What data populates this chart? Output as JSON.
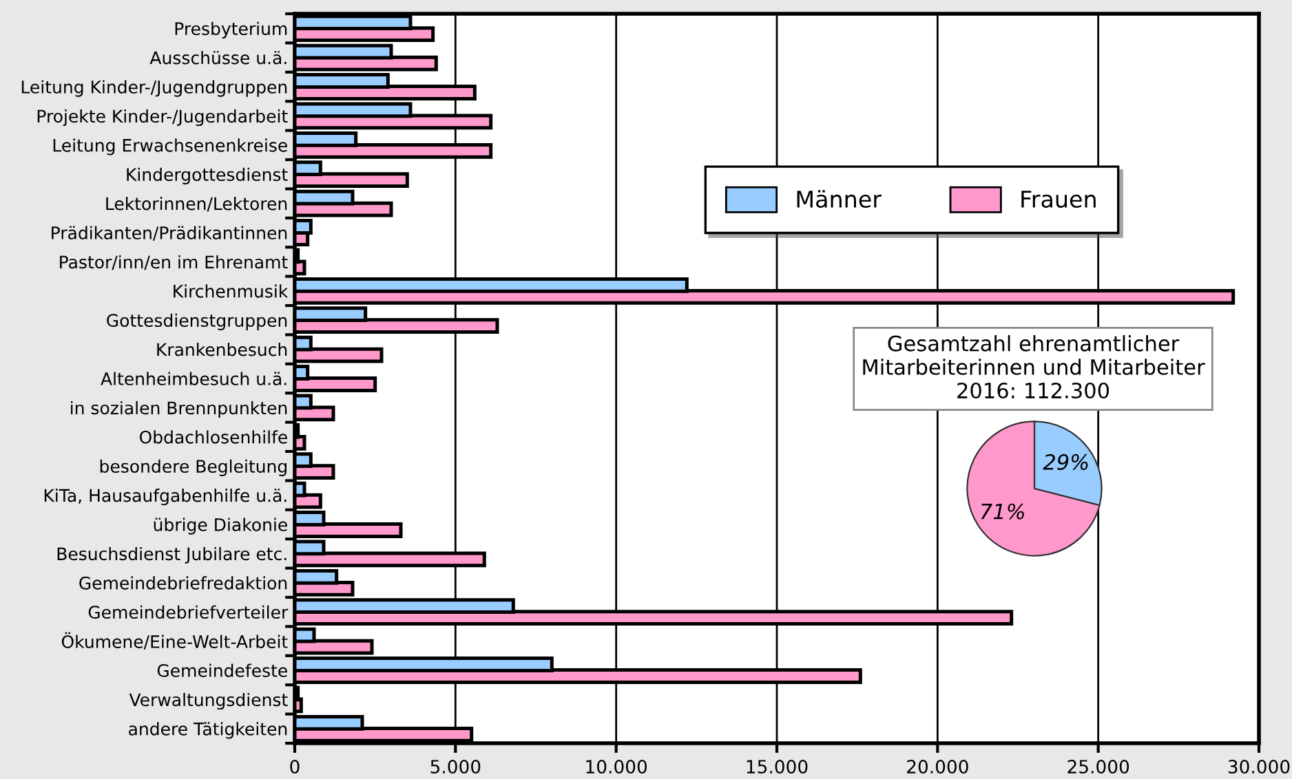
{
  "chart_data": [
    {
      "type": "bar",
      "orientation": "horizontal",
      "categories": [
        "Presbyterium",
        "Ausschüsse u.ä.",
        "Leitung Kinder-/Jugendgruppen",
        "Projekte Kinder-/Jugendarbeit",
        "Leitung Erwachsenenkreise",
        "Kindergottesdienst",
        "Lektorinnen/Lektoren",
        "Prädikanten/Prädikantinnen",
        "Pastor/inn/en im Ehrenamt",
        "Kirchenmusik",
        "Gottesdienstgruppen",
        "Krankenbesuch",
        "Altenheimbesuch u.ä.",
        "in sozialen Brennpunkten",
        "Obdachlosenhilfe",
        "besondere Begleitung",
        "KiTa, Hausaufgabenhilfe u.ä.",
        "übrige Diakonie",
        "Besuchsdienst Jubilare etc.",
        "Gemeindebriefredaktion",
        "Gemeindebriefverteiler",
        "Ökumene/Eine-Welt-Arbeit",
        "Gemeindefeste",
        "Verwaltungsdienst",
        "andere Tätigkeiten"
      ],
      "series": [
        {
          "name": "Männer",
          "color": "#99ccff",
          "values": [
            3600,
            3000,
            2900,
            3600,
            1900,
            800,
            1800,
            500,
            100,
            12200,
            2200,
            500,
            400,
            500,
            100,
            500,
            300,
            900,
            900,
            1300,
            6800,
            600,
            8000,
            100,
            2100
          ]
        },
        {
          "name": "Frauen",
          "color": "#ff99cc",
          "values": [
            4300,
            4400,
            5600,
            6100,
            6100,
            3500,
            3000,
            400,
            300,
            29200,
            6300,
            2700,
            2500,
            1200,
            300,
            1200,
            800,
            3300,
            5900,
            1800,
            22300,
            2400,
            17600,
            200,
            5500
          ]
        }
      ],
      "xlim": [
        0,
        30000
      ],
      "xticks": [
        {
          "value": 0,
          "label": "0"
        },
        {
          "value": 5000,
          "label": "5.000"
        },
        {
          "value": 10000,
          "label": "10.000"
        },
        {
          "value": 15000,
          "label": "15.000"
        },
        {
          "value": 20000,
          "label": "20.000"
        },
        {
          "value": 25000,
          "label": "25.000"
        },
        {
          "value": 30000,
          "label": "30.000"
        }
      ],
      "grid": "x",
      "legend": "top right"
    },
    {
      "type": "pie",
      "title": "Gesamtzahl ehrenamtlicher\nMitarbeiterinnen und Mitarbeiter\n2016: 112.300",
      "categories": [
        null,
        null
      ],
      "values": [
        29,
        71
      ],
      "colors": [
        "#99ccff",
        "#ff99cc"
      ],
      "value_labels": [
        "29%",
        "71%"
      ]
    }
  ]
}
